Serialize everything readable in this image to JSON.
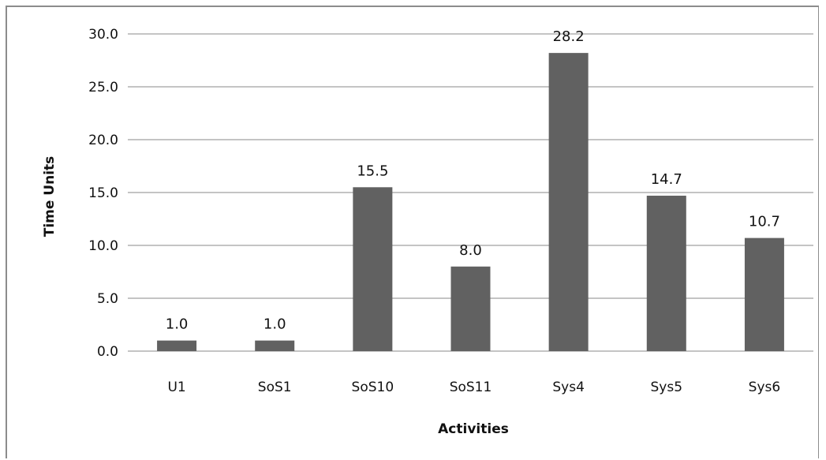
{
  "chart_data": {
    "type": "bar",
    "title": "",
    "xlabel": "Activities",
    "ylabel": "Time Units",
    "categories": [
      "U1",
      "SoS1",
      "SoS10",
      "SoS11",
      "Sys4",
      "Sys5",
      "Sys6"
    ],
    "values": [
      1.0,
      1.0,
      15.5,
      8.0,
      28.2,
      14.7,
      10.7
    ],
    "value_labels": [
      "1.0",
      "1.0",
      "15.5",
      "8.0",
      "28.2",
      "14.7",
      "10.7"
    ],
    "ylim": [
      0,
      30
    ],
    "yticks": [
      "0.0",
      "5.0",
      "10.0",
      "15.0",
      "20.0",
      "25.0",
      "30.0"
    ],
    "grid": true,
    "legend": "none",
    "colors": {
      "bar": "#616161",
      "grid": "#8a8a8a",
      "frame": "#8c8c8c"
    }
  }
}
